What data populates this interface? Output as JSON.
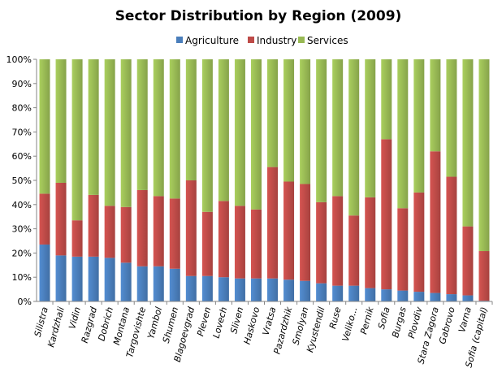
{
  "chart_data": {
    "type": "bar",
    "stacked": "percent",
    "title": "Sector Distribution  by Region (2009)",
    "legend_position": "top",
    "grid": false,
    "ylim": [
      0,
      100
    ],
    "yticks": [
      "0%",
      "10%",
      "20%",
      "30%",
      "40%",
      "50%",
      "60%",
      "70%",
      "80%",
      "90%",
      "100%"
    ],
    "categories": [
      "Silistra",
      "Kardzhali",
      "Vidin",
      "Razgrad",
      "Dobrich",
      "Montana",
      "Targovishte",
      "Yambol",
      "Shumen",
      "Blagoevgrad",
      "Pleven",
      "Lovech",
      "Sliven",
      "Haskovo",
      "Vratsa",
      "Pazardzhik",
      "Smolyan",
      "Kyustendil",
      "Ruse",
      "Veliko...",
      "Pernik",
      "Sofia",
      "Burgas",
      "Plovdiv",
      "Stara Zagora",
      "Gabrovo",
      "Varna",
      "Sofia (capital)"
    ],
    "series": [
      {
        "name": "Agriculture",
        "color": "#4a7ebb",
        "values": [
          23.5,
          19,
          18.5,
          18.5,
          18,
          16,
          14.5,
          14.5,
          13.5,
          10.5,
          10.5,
          10,
          9.5,
          9.5,
          9.5,
          9,
          8.5,
          7.5,
          6.5,
          6.5,
          5.5,
          5,
          4.5,
          4,
          3.5,
          3,
          2.5,
          0.3
        ]
      },
      {
        "name": "Industry",
        "color": "#be4b48",
        "values": [
          21,
          30,
          15,
          25.5,
          21.5,
          23,
          31.5,
          29,
          29,
          39.5,
          26.5,
          31.5,
          30,
          28.5,
          46,
          40.5,
          40,
          33.5,
          37,
          29,
          37.5,
          62,
          34,
          41,
          58.5,
          48.5,
          28.5,
          20.5
        ]
      },
      {
        "name": "Services",
        "color": "#98b954",
        "values": [
          55.5,
          51,
          66.5,
          56,
          60.5,
          61,
          54,
          56.5,
          57.5,
          50,
          63,
          58.5,
          60.5,
          62,
          44.5,
          50.5,
          51.5,
          59,
          56.5,
          64.5,
          57,
          33,
          61.5,
          55,
          38,
          48.5,
          69,
          79.2
        ]
      }
    ]
  }
}
